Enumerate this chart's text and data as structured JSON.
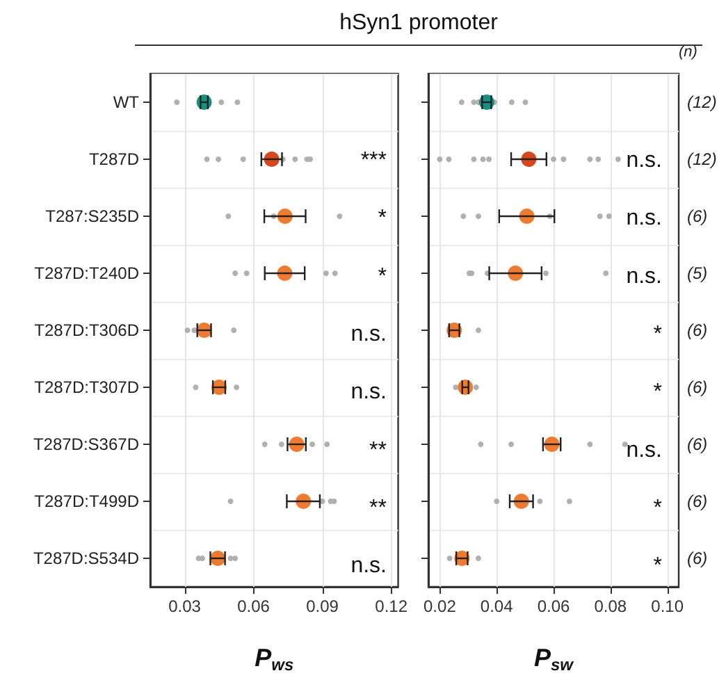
{
  "chart_data": [
    {
      "type": "scatter",
      "title": "hSyn1 promoter",
      "orientation": "horizontal",
      "xlabel": "P$_{ws}$",
      "categories": [
        "WT",
        "T287D",
        "T287:S235D",
        "T287D:T240D",
        "T287D:T306D",
        "T287D:T307D",
        "T287D:S367D",
        "T287D:T499D",
        "T287D:S534D"
      ],
      "xlim": [
        0.015,
        0.123
      ],
      "xticks": [
        0.03,
        0.06,
        0.09,
        0.12
      ],
      "grid": true,
      "marker": "circle",
      "series": [
        {
          "color": "#b0b0b0",
          "x": [
            "WT",
            "WT",
            "WT",
            "T287D",
            "T287D",
            "T287D",
            "T287D",
            "T287D",
            "T287D",
            "T287D",
            "T287D",
            "T287D",
            "T287:S235D",
            "T287:S235D",
            "T287:S235D",
            "T287D:T240D",
            "T287D:T240D",
            "T287D:T240D",
            "T287D:T240D",
            "T287D:T306D",
            "T287D:T306D",
            "T287D:T306D",
            "T287D:T307D",
            "T287D:T307D",
            "T287D:S367D",
            "T287D:S367D",
            "T287D:S367D",
            "T287D:S367D",
            "T287D:T499D",
            "T287D:T499D",
            "T287D:T499D",
            "T287D:T499D",
            "T287D:S534D",
            "T287D:S534D",
            "T287D:S534D",
            "T287D:S534D"
          ],
          "values": [
            0.0266,
            0.046,
            0.053,
            0.0397,
            0.0447,
            0.0555,
            null,
            0.0728,
            null,
            0.0781,
            0.0833,
            0.0847,
            0.049,
            0.0688,
            0.0975,
            0.052,
            0.057,
            0.0916,
            0.0955,
            0.0312,
            0.0342,
            0.0514,
            0.0348,
            0.0526,
            0.0649,
            0.0722,
            0.0856,
            0.092,
            0.05,
            0.09,
            0.0936,
            0.0951,
            0.0361,
            0.0377,
            0.05,
            0.052
          ]
        },
        {
          "colors": [
            "#16917f",
            "#d8461b",
            "#f07b2e",
            "#f07b2e",
            "#f07b2e",
            "#f07b2e",
            "#f07b2e",
            "#f07b2e",
            "#f07b2e"
          ],
          "values": [
            0.0385,
            0.0679,
            0.0737,
            0.0736,
            0.0385,
            0.045,
            0.0788,
            0.0817,
            0.0444
          ],
          "errors": [
            0.0016,
            0.0045,
            0.009,
            0.0087,
            0.003,
            0.0027,
            0.004,
            0.0072,
            0.0032
          ]
        }
      ],
      "annotations": [
        "***",
        "*",
        "*",
        "n.s.",
        "n.s.",
        "**",
        "**",
        "n.s."
      ]
    },
    {
      "type": "scatter",
      "orientation": "horizontal",
      "xlabel": "P$_{sw}$",
      "tick_labels": "x",
      "categories": [
        "WT",
        "T287D",
        "T287:S235D",
        "T287D:T240D",
        "T287D:T306D",
        "T287D:T307D",
        "T287D:S367D",
        "T287D:T499D",
        "T287D:S534D"
      ],
      "xlim": [
        0.016,
        0.104
      ],
      "xticks": [
        0.02,
        0.04,
        0.06,
        0.08,
        {
          "value": 0.1,
          "label": "0.10"
        }
      ],
      "grid": true,
      "marker": "circle",
      "y2label": "(n)",
      "y2_categories": [
        "(12)",
        "(12)",
        "(6)",
        "(5)",
        "(6)",
        "(6)",
        "(6)",
        "(6)",
        "(6)"
      ],
      "series": [
        {
          "color": "#b0b0b0",
          "x": [
            "WT",
            "WT",
            "WT",
            "WT",
            "WT",
            "WT",
            "T287D",
            "T287D",
            "T287D",
            "T287D",
            "T287D",
            "T287D",
            "T287D",
            "T287D",
            "T287D",
            "T287D",
            "T287:S235D",
            "T287:S235D",
            "T287:S235D",
            "T287:S235D",
            "T287:S235D",
            "T287D:T240D",
            "T287D:T240D",
            "T287D:T240D",
            "T287D:T240D",
            "T287D:T240D",
            "T287D:T306D",
            "T287D:T306D",
            "T287D:T307D",
            "T287D:T307D",
            "T287D:S367D",
            "T287D:S367D",
            "T287D:S367D",
            "T287D:S367D",
            "T287D:T499D",
            "T287D:T499D",
            "T287D:T499D",
            "T287D:S534D",
            "T287D:S534D"
          ],
          "values": [
            0.0277,
            0.032,
            0.0336,
            0.0392,
            0.0453,
            0.0501,
            0.02,
            0.0232,
            0.032,
            0.0352,
            0.0373,
            0.06,
            0.0635,
            0.0728,
            0.0757,
            0.0827,
            0.0283,
            0.0336,
            0.0587,
            0.0763,
            0.0795,
            0.0304,
            0.0312,
            0.0368,
            0.0573,
            0.0784,
            null,
            0.0336,
            0.0256,
            0.0328,
            0.0344,
            0.0451,
            0.0728,
            0.0851,
            0.04,
            0.0552,
            0.0656,
            0.0235,
            0.0336
          ]
        },
        {
          "colors": [
            "#16917f",
            "#d8461b",
            "#f07b2e",
            "#f07b2e",
            "#f07b2e",
            "#f07b2e",
            "#f07b2e",
            "#f07b2e",
            "#f07b2e"
          ],
          "values": [
            0.0365,
            0.0513,
            0.0506,
            0.0466,
            0.0251,
            0.029,
            0.0594,
            0.0487,
            0.0278
          ],
          "errors": [
            0.0016,
            0.0062,
            0.0097,
            0.0092,
            0.0018,
            0.0011,
            0.0031,
            0.0041,
            0.002
          ]
        }
      ],
      "annotations": [
        "n.s.",
        "n.s.",
        "n.s.",
        "*",
        "*",
        "n.s.",
        "*",
        "*"
      ]
    }
  ]
}
